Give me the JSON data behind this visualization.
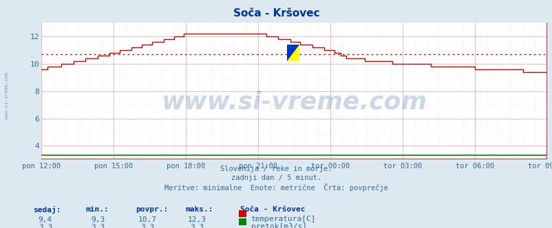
{
  "title": "Soča - Kršovec",
  "bg_color": "#dce9f0",
  "plot_bg_color": "#ffffff",
  "grid_color_major": "#ffaaaa",
  "grid_color_minor": "#ffdddd",
  "line_color_temp": "#cc0000",
  "line_color_flow": "#008800",
  "avg_line_color": "#cc0000",
  "avg_value": 10.7,
  "flow_value": 3.3,
  "ylim": [
    3.0,
    13.0
  ],
  "yticks": [
    4,
    6,
    8,
    10,
    12
  ],
  "tick_color": "#336699",
  "title_color": "#003399",
  "watermark_text": "www.si-vreme.com",
  "watermark_color": "#336699",
  "watermark_alpha": 0.25,
  "subtitle_lines": [
    "Slovenija / reke in morje.",
    "zadnji dan / 5 minut.",
    "Meritve: minimalne  Enote: metrične  Črta: povprečje"
  ],
  "subtitle_color": "#336699",
  "xtick_labels": [
    "pon 12:00",
    "pon 15:00",
    "pon 18:00",
    "pon 21:00",
    "tor 00:00",
    "tor 03:00",
    "tor 06:00",
    "tor 09:00"
  ],
  "xtick_positions": [
    0,
    36,
    72,
    108,
    144,
    180,
    216,
    252
  ],
  "total_points": 252,
  "legend_title": "Soča - Kršovec",
  "legend_items": [
    {
      "label": "temperatura[C]",
      "color": "#cc0000"
    },
    {
      "label": "pretok[m3/s]",
      "color": "#008800"
    }
  ],
  "table_headers": [
    "sedaj:",
    "min.:",
    "povpr.:",
    "maks.:"
  ],
  "table_rows": [
    [
      "9,4",
      "9,3",
      "10,7",
      "12,3"
    ],
    [
      "3,3",
      "3,3",
      "3,3",
      "3,3"
    ]
  ],
  "left_label": "www.si-vreme.com",
  "left_label_color": "#336699",
  "border_color": "#cc0000"
}
